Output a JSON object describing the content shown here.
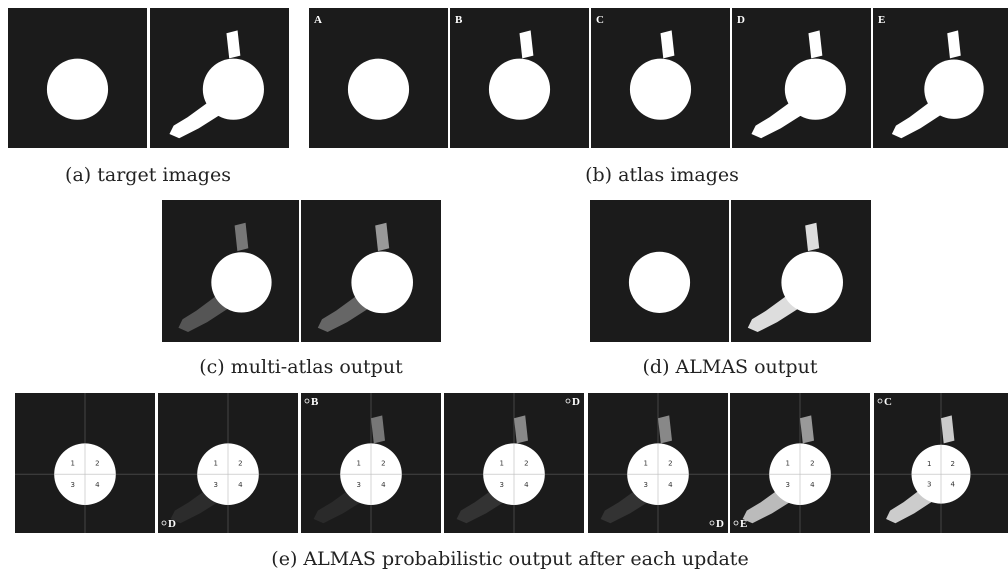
{
  "captions": {
    "a": "(a) target images",
    "b": "(b) atlas images",
    "c": "(c) multi-atlas output",
    "d": "(d) ALMAS output",
    "e": "(e) ALMAS probabilistic output after each update"
  },
  "atlas_labels": [
    "A",
    "B",
    "C",
    "D",
    "E"
  ],
  "quadrant_labels": [
    "1",
    "2",
    "3",
    "4"
  ],
  "update_labels": [
    "D",
    "B",
    "D",
    "D",
    "E",
    "C"
  ]
}
